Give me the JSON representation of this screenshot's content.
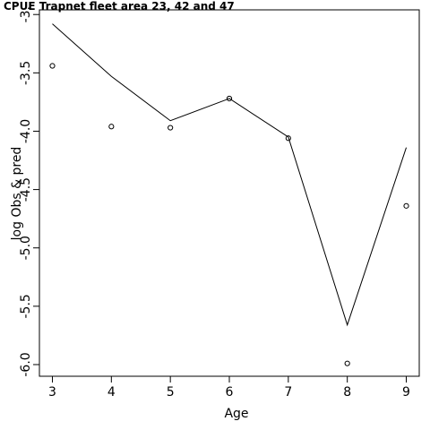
{
  "chart_data": {
    "type": "line",
    "title": "CPUE Trapnet fleet area 23, 42 and 47",
    "xlabel": "Age",
    "ylabel": "log Obs & pred",
    "x": [
      3,
      4,
      5,
      6,
      7,
      8,
      9
    ],
    "x_ticks": [
      "3",
      "4",
      "5",
      "6",
      "7",
      "8",
      "9"
    ],
    "y_ticks": [
      "-3.",
      "-3.5",
      "-4.0",
      "-4.5",
      "-5.0",
      "-5.5",
      "-6.0"
    ],
    "y_tick_values": [
      -3.0,
      -3.5,
      -4.0,
      -4.5,
      -5.0,
      -5.5,
      -6.0
    ],
    "xlim": [
      2.78,
      9.22
    ],
    "ylim": [
      -6.1,
      -2.96
    ],
    "grid": false,
    "series": [
      {
        "style": "line",
        "values": [
          -3.08,
          -3.53,
          -3.91,
          -3.72,
          -4.05,
          -5.66,
          -4.14
        ]
      },
      {
        "style": "points",
        "values": [
          -3.44,
          -3.96,
          -3.97,
          -3.72,
          -4.06,
          -5.99,
          -4.64
        ]
      }
    ]
  }
}
